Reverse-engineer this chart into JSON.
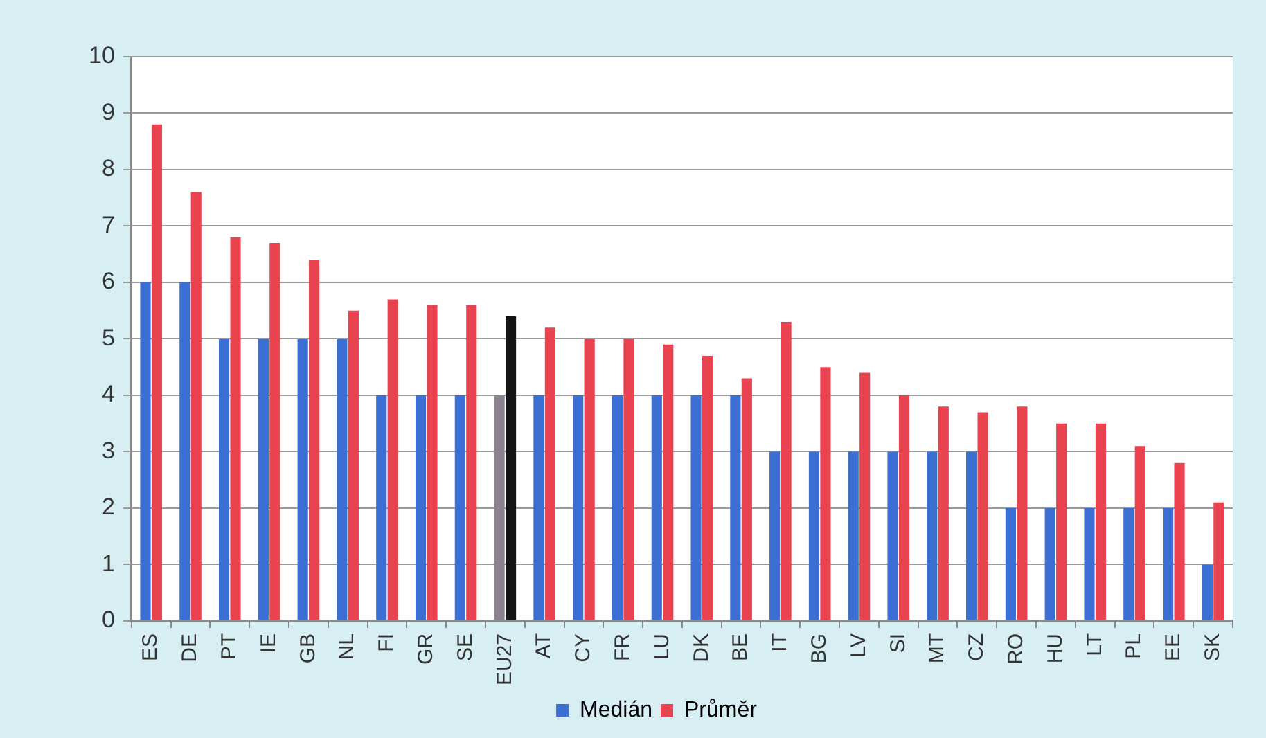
{
  "chart_data": {
    "type": "bar",
    "categories": [
      "ES",
      "DE",
      "PT",
      "IE",
      "GB",
      "NL",
      "FI",
      "GR",
      "SE",
      "EU27",
      "AT",
      "CY",
      "FR",
      "LU",
      "DK",
      "BE",
      "IT",
      "BG",
      "LV",
      "SI",
      "MT",
      "CZ",
      "RO",
      "HU",
      "LT",
      "PL",
      "EE",
      "SK"
    ],
    "series": [
      {
        "name": "Medián",
        "color": "#3b6fd4",
        "colors": [
          "#3b6fd4",
          "#3b6fd4",
          "#3b6fd4",
          "#3b6fd4",
          "#3b6fd4",
          "#3b6fd4",
          "#3b6fd4",
          "#3b6fd4",
          "#3b6fd4",
          "#8a8290",
          "#3b6fd4",
          "#3b6fd4",
          "#3b6fd4",
          "#3b6fd4",
          "#3b6fd4",
          "#3b6fd4",
          "#3b6fd4",
          "#3b6fd4",
          "#3b6fd4",
          "#3b6fd4",
          "#3b6fd4",
          "#3b6fd4",
          "#3b6fd4",
          "#3b6fd4",
          "#3b6fd4",
          "#3b6fd4",
          "#3b6fd4",
          "#3b6fd4"
        ],
        "values": [
          6,
          6,
          5,
          5,
          5,
          5,
          4,
          4,
          4,
          4,
          4,
          4,
          4,
          4,
          4,
          4,
          3,
          3,
          3,
          3,
          3,
          3,
          2,
          2,
          2,
          2,
          2,
          1
        ]
      },
      {
        "name": "Průměr",
        "color": "#e8434f",
        "colors": [
          "#e8434f",
          "#e8434f",
          "#e8434f",
          "#e8434f",
          "#e8434f",
          "#e8434f",
          "#e8434f",
          "#e8434f",
          "#e8434f",
          "#141414",
          "#e8434f",
          "#e8434f",
          "#e8434f",
          "#e8434f",
          "#e8434f",
          "#e8434f",
          "#e8434f",
          "#e8434f",
          "#e8434f",
          "#e8434f",
          "#e8434f",
          "#e8434f",
          "#e8434f",
          "#e8434f",
          "#e8434f",
          "#e8434f",
          "#e8434f",
          "#e8434f"
        ],
        "values": [
          8.8,
          7.6,
          6.8,
          6.7,
          6.4,
          5.5,
          5.7,
          5.6,
          5.6,
          5.4,
          5.2,
          5.0,
          5.0,
          4.9,
          4.7,
          4.3,
          5.3,
          4.5,
          4.4,
          4.0,
          3.8,
          3.7,
          3.8,
          3.5,
          3.5,
          3.1,
          2.8,
          2.1
        ]
      }
    ],
    "ylim": [
      0,
      10
    ],
    "yticks": [
      0,
      1,
      2,
      3,
      4,
      5,
      6,
      7,
      8,
      9,
      10
    ],
    "grid": "y",
    "legend": "bottom"
  }
}
